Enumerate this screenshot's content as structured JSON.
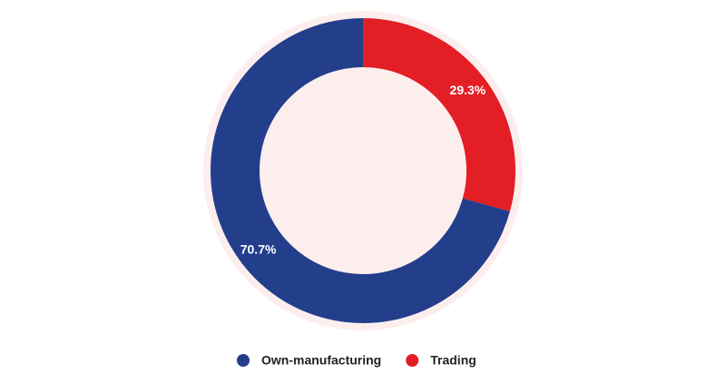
{
  "chart_data": {
    "type": "donut",
    "series": [
      {
        "name": "Own-manufacturing",
        "color": "#233e8b",
        "values": [
          70.7
        ],
        "value_labels": [
          "70.7%"
        ]
      },
      {
        "name": "Trading",
        "color": "#e31e24",
        "values": [
          29.3
        ],
        "value_labels": [
          "29.3%"
        ]
      }
    ]
  }
}
